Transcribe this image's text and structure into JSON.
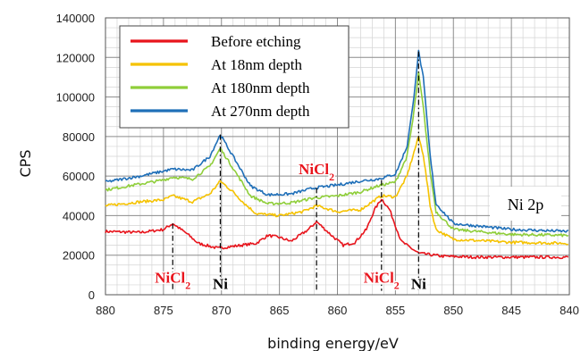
{
  "chart_data": {
    "type": "line",
    "xlabel": "binding energy/eV",
    "ylabel": "CPS",
    "xlim": [
      880,
      840
    ],
    "ylim": [
      0,
      140000
    ],
    "x_reversed": true,
    "grid": true,
    "legend_position": "top-left",
    "xticks": [
      "880",
      "875",
      "870",
      "865",
      "860",
      "855",
      "850",
      "845",
      "840"
    ],
    "yticks": [
      "0",
      "20000",
      "40000",
      "60000",
      "80000",
      "100000",
      "120000",
      "140000"
    ],
    "series": [
      {
        "name": "Before etching",
        "color": "#e8141c",
        "points": [
          [
            880,
            32000
          ],
          [
            877,
            31500
          ],
          [
            875,
            33000
          ],
          [
            874.2,
            36000
          ],
          [
            873,
            31000
          ],
          [
            872,
            26000
          ],
          [
            870.3,
            23500
          ],
          [
            869,
            24500
          ],
          [
            867,
            26000
          ],
          [
            866,
            30000
          ],
          [
            865,
            29000
          ],
          [
            864,
            27000
          ],
          [
            862.5,
            33000
          ],
          [
            861.8,
            37000
          ],
          [
            860.5,
            30000
          ],
          [
            859.5,
            25000
          ],
          [
            858.5,
            26500
          ],
          [
            857.5,
            33000
          ],
          [
            856.8,
            43000
          ],
          [
            856.2,
            48500
          ],
          [
            855.5,
            43000
          ],
          [
            854.5,
            27000
          ],
          [
            853,
            21000
          ],
          [
            851,
            19500
          ],
          [
            848,
            19000
          ],
          [
            845,
            19000
          ],
          [
            840,
            19000
          ]
        ]
      },
      {
        "name": "At 18nm depth",
        "color": "#f5c200",
        "points": [
          [
            880,
            45000
          ],
          [
            877,
            47000
          ],
          [
            875,
            48000
          ],
          [
            874.2,
            50000
          ],
          [
            872.5,
            47000
          ],
          [
            871,
            51000
          ],
          [
            870.1,
            57500
          ],
          [
            869,
            52000
          ],
          [
            868,
            46000
          ],
          [
            867,
            41000
          ],
          [
            865,
            40000
          ],
          [
            863,
            42000
          ],
          [
            861.8,
            45000
          ],
          [
            860,
            42000
          ],
          [
            858,
            43000
          ],
          [
            857,
            47000
          ],
          [
            856.2,
            50000
          ],
          [
            855,
            49500
          ],
          [
            854,
            60000
          ],
          [
            853.5,
            70000
          ],
          [
            853,
            80000
          ],
          [
            852.6,
            71000
          ],
          [
            852,
            45000
          ],
          [
            851.5,
            33000
          ],
          [
            850,
            28000
          ],
          [
            845,
            26500
          ],
          [
            840,
            26000
          ]
        ]
      },
      {
        "name": "At 180nm depth",
        "color": "#8fce3a",
        "points": [
          [
            880,
            53000
          ],
          [
            877,
            56000
          ],
          [
            875,
            58000
          ],
          [
            874.2,
            59500
          ],
          [
            872.5,
            58500
          ],
          [
            871,
            65000
          ],
          [
            870.1,
            74000
          ],
          [
            869,
            64000
          ],
          [
            867.5,
            50000
          ],
          [
            866,
            46000
          ],
          [
            864,
            46500
          ],
          [
            862,
            49000
          ],
          [
            860,
            50000
          ],
          [
            858,
            52000
          ],
          [
            856.5,
            55000
          ],
          [
            855,
            57000
          ],
          [
            854,
            70000
          ],
          [
            853.5,
            88000
          ],
          [
            853,
            112000
          ],
          [
            852.6,
            95000
          ],
          [
            852,
            62000
          ],
          [
            851.5,
            42000
          ],
          [
            850,
            33000
          ],
          [
            845,
            30500
          ],
          [
            840,
            30000
          ]
        ]
      },
      {
        "name": "At 270nm depth",
        "color": "#1f6fb8",
        "points": [
          [
            880,
            57000
          ],
          [
            877,
            60000
          ],
          [
            875,
            62500
          ],
          [
            874.2,
            63500
          ],
          [
            872.5,
            63000
          ],
          [
            871,
            70000
          ],
          [
            870.1,
            81000
          ],
          [
            869,
            70000
          ],
          [
            867.5,
            55000
          ],
          [
            866,
            50500
          ],
          [
            864,
            51000
          ],
          [
            862,
            54000
          ],
          [
            860,
            55500
          ],
          [
            858,
            57500
          ],
          [
            856.5,
            58500
          ],
          [
            855,
            61000
          ],
          [
            854,
            75000
          ],
          [
            853.5,
            95000
          ],
          [
            853,
            123000
          ],
          [
            852.6,
            110000
          ],
          [
            852,
            70000
          ],
          [
            851.5,
            46000
          ],
          [
            850,
            36000
          ],
          [
            845,
            33000
          ],
          [
            840,
            32000
          ]
        ]
      }
    ],
    "annotations": [
      {
        "text": "NiCl",
        "sub": "2",
        "style": "red",
        "x": 874.2,
        "line_from": 36000,
        "line_to": 2000,
        "label_y": 6000,
        "anchor": "middle"
      },
      {
        "text": "Ni",
        "sub": "",
        "style": "black",
        "x": 870.1,
        "line_from": 81000,
        "line_to": 2000,
        "label_y": 3000,
        "anchor": "middle"
      },
      {
        "text": "NiCl",
        "sub": "2",
        "style": "red",
        "x": 861.8,
        "line_from": 54000,
        "line_to": 2000,
        "label_y": 61000,
        "anchor": "middle"
      },
      {
        "text": "NiCl",
        "sub": "2",
        "style": "red",
        "x": 856.2,
        "line_from": 58000,
        "line_to": 2000,
        "label_y": 6000,
        "anchor": "middle"
      },
      {
        "text": "Ni",
        "sub": "",
        "style": "black",
        "x": 853.0,
        "line_from": 123000,
        "line_to": 2000,
        "label_y": 3000,
        "anchor": "middle"
      }
    ],
    "inner_label": "Ni 2p"
  }
}
